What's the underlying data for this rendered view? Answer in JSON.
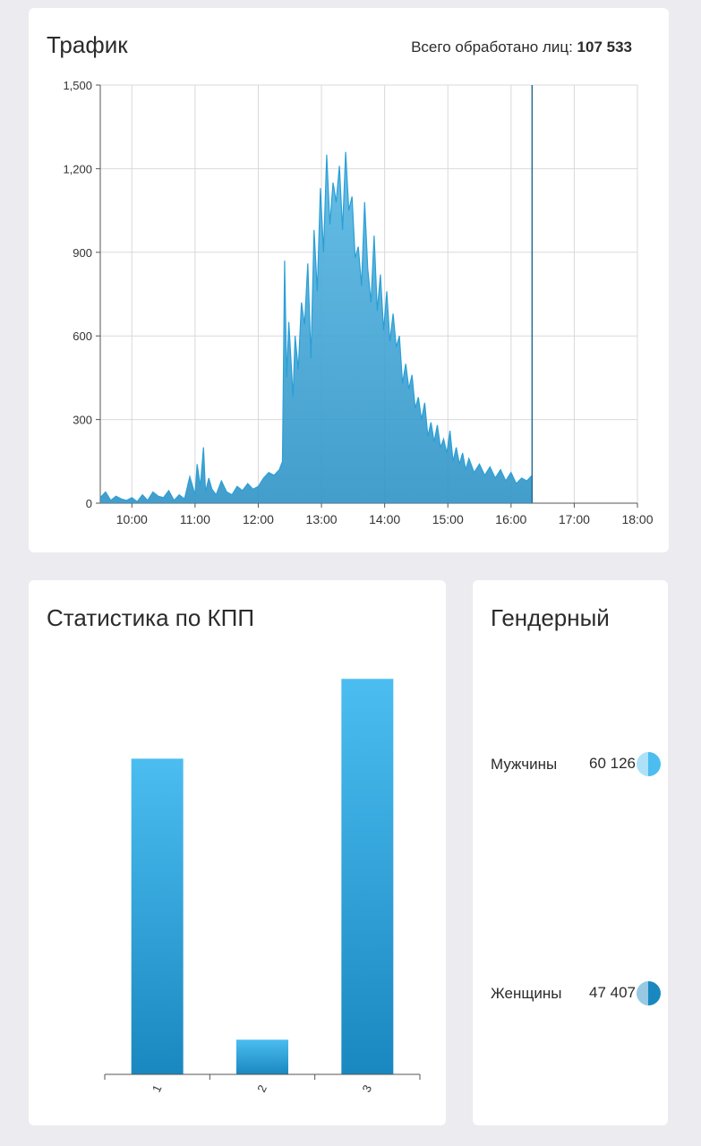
{
  "traffic": {
    "title": "Трафик",
    "total_label": "Всего обработано лиц:",
    "total_value": "107 533"
  },
  "kpp": {
    "title": "Статистика по КПП"
  },
  "gender": {
    "title": "Гендерный",
    "items": [
      {
        "label": "Мужчины",
        "value": "60 126",
        "color": "#4bbdf0"
      },
      {
        "label": "Женщины",
        "value": "47 407",
        "color": "#1a88c0"
      }
    ]
  },
  "colors": {
    "area_fill_top": "#55b7e3",
    "area_fill_bottom": "#2f93c6",
    "area_line": "#2a9fd6",
    "bar_top": "#4bbdf0",
    "bar_bottom": "#1a88c0",
    "grid": "#d9d9d9"
  },
  "chart_data": [
    {
      "type": "area",
      "title": "Трафик",
      "x_ticks": [
        "10:00",
        "11:00",
        "12:00",
        "13:00",
        "14:00",
        "15:00",
        "16:00",
        "17:00",
        "18:00"
      ],
      "y_ticks": [
        "0",
        "300",
        "600",
        "900",
        "1,200",
        "1,500"
      ],
      "ylim": [
        0,
        1500
      ],
      "xlim": [
        "09:30",
        "18:00"
      ],
      "grid": true,
      "cursor_time": "16:20",
      "series": [
        {
          "x": [
            "09:30",
            "09:35",
            "09:40",
            "09:45",
            "09:50",
            "09:55",
            "10:00",
            "10:05",
            "10:10",
            "10:15",
            "10:20",
            "10:25",
            "10:30",
            "10:35",
            "10:40",
            "10:45",
            "10:50",
            "10:55",
            "11:00",
            "11:02",
            "11:05",
            "11:08",
            "11:10",
            "11:13",
            "11:16",
            "11:20",
            "11:25",
            "11:30",
            "11:35",
            "11:40",
            "11:45",
            "11:50",
            "11:55",
            "12:00",
            "12:05",
            "12:10",
            "12:15",
            "12:20",
            "12:23",
            "12:25",
            "12:27",
            "12:29",
            "12:31",
            "12:33",
            "12:35",
            "12:38",
            "12:41",
            "12:44",
            "12:47",
            "12:50",
            "12:53",
            "12:56",
            "12:59",
            "13:02",
            "13:05",
            "13:08",
            "13:11",
            "13:14",
            "13:17",
            "13:20",
            "13:23",
            "13:26",
            "13:29",
            "13:32",
            "13:35",
            "13:38",
            "13:41",
            "13:44",
            "13:47",
            "13:50",
            "13:53",
            "13:56",
            "13:59",
            "14:02",
            "14:05",
            "14:08",
            "14:11",
            "14:14",
            "14:17",
            "14:20",
            "14:23",
            "14:26",
            "14:29",
            "14:32",
            "14:35",
            "14:38",
            "14:41",
            "14:44",
            "14:47",
            "14:50",
            "14:53",
            "14:56",
            "14:59",
            "15:02",
            "15:05",
            "15:08",
            "15:11",
            "15:14",
            "15:17",
            "15:20",
            "15:25",
            "15:30",
            "15:35",
            "15:40",
            "15:45",
            "15:50",
            "15:55",
            "16:00",
            "16:05",
            "16:10",
            "16:15",
            "16:20"
          ],
          "values": [
            20,
            40,
            10,
            25,
            15,
            10,
            20,
            5,
            30,
            10,
            40,
            25,
            20,
            45,
            10,
            30,
            15,
            95,
            30,
            140,
            60,
            200,
            40,
            90,
            50,
            30,
            80,
            40,
            30,
            60,
            45,
            70,
            50,
            60,
            90,
            110,
            100,
            120,
            150,
            870,
            450,
            650,
            520,
            380,
            600,
            480,
            720,
            640,
            860,
            520,
            980,
            760,
            1130,
            900,
            1250,
            1000,
            1150,
            1080,
            1210,
            980,
            1260,
            1050,
            1100,
            880,
            920,
            780,
            1080,
            840,
            720,
            960,
            690,
            820,
            620,
            760,
            580,
            680,
            560,
            600,
            430,
            500,
            410,
            460,
            340,
            380,
            300,
            360,
            240,
            290,
            220,
            280,
            200,
            230,
            180,
            260,
            150,
            200,
            140,
            180,
            120,
            160,
            110,
            140,
            100,
            130,
            90,
            120,
            80,
            110,
            70,
            90,
            80,
            100
          ]
        }
      ]
    },
    {
      "type": "bar",
      "title": "Статистика по КПП",
      "categories": [
        "1",
        "2",
        "3"
      ],
      "values": [
        45500,
        5000,
        57000
      ],
      "ylim": [
        0,
        60000
      ]
    }
  ]
}
